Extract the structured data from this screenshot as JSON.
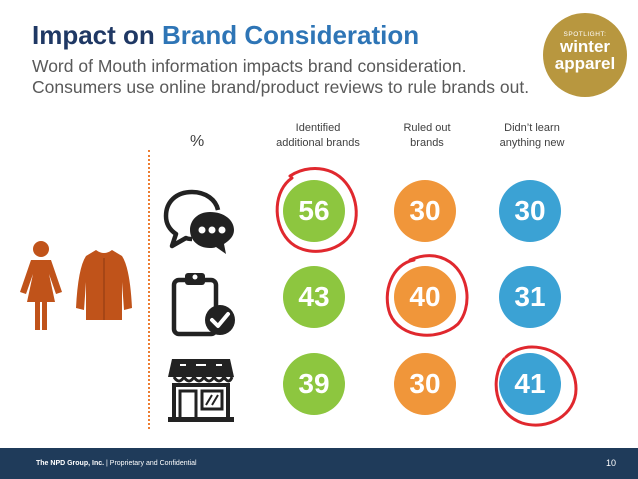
{
  "header": {
    "title_main": "Impact on ",
    "title_accent": "Brand Consideration",
    "subtitle": "Word of Mouth information impacts brand consideration. Consumers use online brand/product reviews to rule brands out."
  },
  "badge": {
    "small": "SPOTLIGHT:",
    "line1": "winter",
    "line2": "apparel"
  },
  "table": {
    "unit": "%",
    "columns": [
      {
        "line1": "Identified",
        "line2": "additional brands"
      },
      {
        "line1": "Ruled out",
        "line2": "brands"
      },
      {
        "line1": "Didn’t learn",
        "line2": "anything new"
      }
    ],
    "rows": [
      {
        "icon": "chat-bubbles-icon",
        "values": [
          "56",
          "30",
          "30"
        ]
      },
      {
        "icon": "clipboard-check-icon",
        "values": [
          "43",
          "40",
          "31"
        ]
      },
      {
        "icon": "storefront-icon",
        "values": [
          "39",
          "30",
          "41"
        ]
      }
    ],
    "highlighted": [
      [
        0,
        0
      ],
      [
        1,
        1
      ],
      [
        2,
        2
      ]
    ]
  },
  "colors": {
    "green": "#8dc63f",
    "orange": "#f0963a",
    "blue": "#3ba2d4",
    "marker": "#e0282e",
    "figure": "#c0531a"
  },
  "footer": {
    "company": "The NPD Group, Inc.",
    "separator": " | ",
    "confidential": "Proprietary and Confidential",
    "page": "10"
  }
}
